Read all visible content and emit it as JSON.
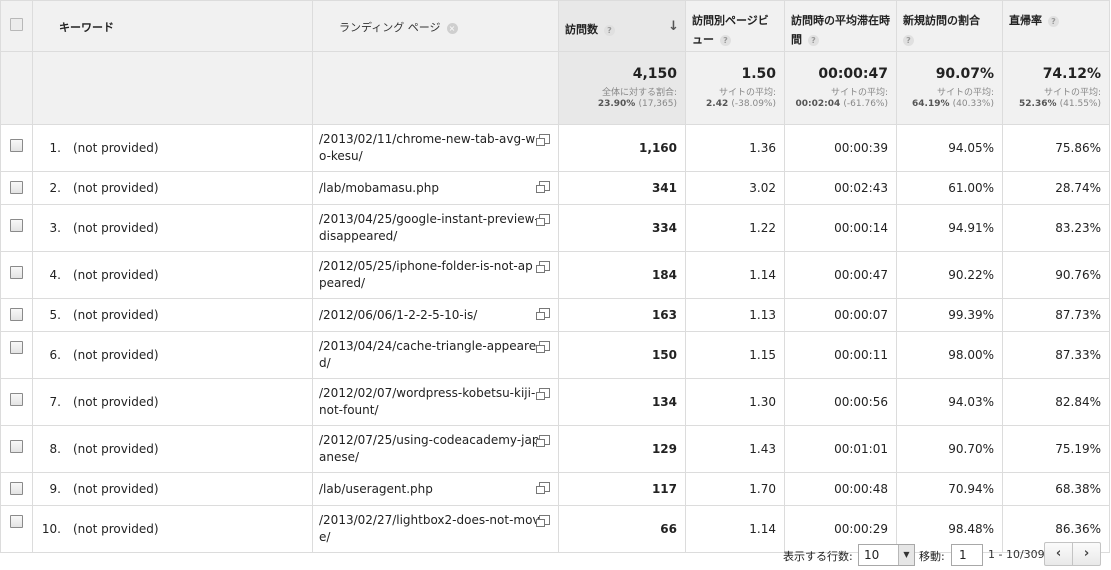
{
  "headers": {
    "keyword": "キーワード",
    "landing_page": "ランディング ページ",
    "visits": "訪問数",
    "pages_per_visit": "訪問別ページビュー",
    "avg_duration": "訪問時の平均滞在時間",
    "new_visits": "新規訪問の割合",
    "bounce_rate": "直帰率",
    "help_glyph": "?"
  },
  "totals": {
    "visits": {
      "value": "4,150",
      "label": "全体に対する割合:",
      "sub": "23.90%",
      "paren": "(17,365)"
    },
    "pages_per_visit": {
      "value": "1.50",
      "label": "サイトの平均:",
      "sub": "2.42",
      "paren": "(-38.09%)"
    },
    "avg_duration": {
      "value": "00:00:47",
      "label": "サイトの平均:",
      "sub": "00:02:04",
      "paren": "(-61.76%)"
    },
    "new_visits": {
      "value": "90.07%",
      "label": "サイトの平均:",
      "sub": "64.19%",
      "paren": "(40.33%)"
    },
    "bounce_rate": {
      "value": "74.12%",
      "label": "サイトの平均:",
      "sub": "52.36%",
      "paren": "(41.55%)"
    }
  },
  "rows": [
    {
      "num": "1.",
      "keyword": "(not provided)",
      "page": "/2013/02/11/chrome-new-tab-avg-wo-kesu/",
      "visits": "1,160",
      "ppv": "1.36",
      "dur": "00:00:39",
      "newv": "94.05%",
      "bounce": "75.86%"
    },
    {
      "num": "2.",
      "keyword": "(not provided)",
      "page": "/lab/mobamasu.php",
      "visits": "341",
      "ppv": "3.02",
      "dur": "00:02:43",
      "newv": "61.00%",
      "bounce": "28.74%"
    },
    {
      "num": "3.",
      "keyword": "(not provided)",
      "page": "/2013/04/25/google-instant-preview-disappeared/",
      "visits": "334",
      "ppv": "1.22",
      "dur": "00:00:14",
      "newv": "94.91%",
      "bounce": "83.23%"
    },
    {
      "num": "4.",
      "keyword": "(not provided)",
      "page": "/2012/05/25/iphone-folder-is-not-appeared/",
      "visits": "184",
      "ppv": "1.14",
      "dur": "00:00:47",
      "newv": "90.22%",
      "bounce": "90.76%"
    },
    {
      "num": "5.",
      "keyword": "(not provided)",
      "page": "/2012/06/06/1-2-2-5-10-is/",
      "visits": "163",
      "ppv": "1.13",
      "dur": "00:00:07",
      "newv": "99.39%",
      "bounce": "87.73%"
    },
    {
      "num": "6.",
      "keyword": "(not provided)",
      "page": "/2013/04/24/cache-triangle-appeared/",
      "visits": "150",
      "ppv": "1.15",
      "dur": "00:00:11",
      "newv": "98.00%",
      "bounce": "87.33%"
    },
    {
      "num": "7.",
      "keyword": "(not provided)",
      "page": "/2012/02/07/wordpress-kobetsu-kiji-not-fount/",
      "visits": "134",
      "ppv": "1.30",
      "dur": "00:00:56",
      "newv": "94.03%",
      "bounce": "82.84%"
    },
    {
      "num": "8.",
      "keyword": "(not provided)",
      "page": "/2012/07/25/using-codeacademy-japanese/",
      "visits": "129",
      "ppv": "1.43",
      "dur": "00:01:01",
      "newv": "90.70%",
      "bounce": "75.19%"
    },
    {
      "num": "9.",
      "keyword": "(not provided)",
      "page": "/lab/useragent.php",
      "visits": "117",
      "ppv": "1.70",
      "dur": "00:00:48",
      "newv": "70.94%",
      "bounce": "68.38%"
    },
    {
      "num": "10.",
      "keyword": "(not provided)",
      "page": "/2013/02/27/lightbox2-does-not-move/",
      "visits": "66",
      "ppv": "1.14",
      "dur": "00:00:29",
      "newv": "98.48%",
      "bounce": "86.36%"
    }
  ],
  "pager": {
    "rows_label": "表示する行数:",
    "rows_value": "10",
    "goto_label": "移動:",
    "goto_value": "1",
    "range": "1 - 10/309",
    "prev_glyph": "‹",
    "next_glyph": "›"
  },
  "icons": {
    "sort": "sort-down-arrow-icon",
    "help": "help-question-icon",
    "clear": "clear-x-icon",
    "open_page": "open-in-new-window-icon"
  }
}
